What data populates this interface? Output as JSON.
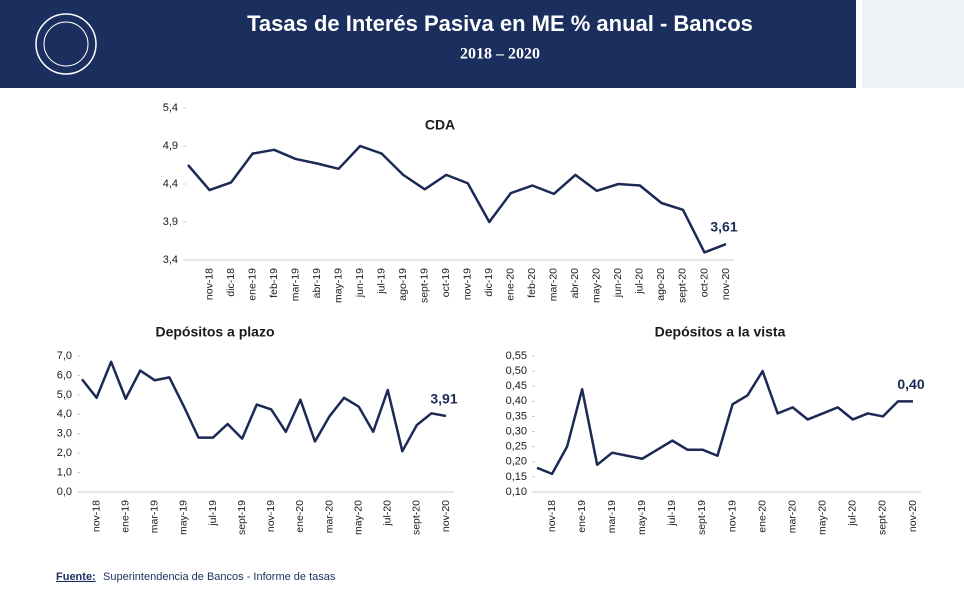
{
  "header": {
    "title": "Tasas de Interés Pasiva en ME % anual - Bancos",
    "subtitle": "2018 – 2020"
  },
  "source": {
    "label": "Fuente:",
    "text": "Superintendencia de Bancos - Informe de tasas"
  },
  "chart_data": [
    {
      "type": "line",
      "title": "CDA",
      "color": "#1b2a55",
      "categories": [
        null,
        "nov-18",
        "dic-18",
        "ene-19",
        "feb-19",
        "mar-19",
        "abr-19",
        "may-19",
        "jun-19",
        "jul-19",
        "ago-19",
        "sept-19",
        "oct-19",
        "nov-19",
        "dic-19",
        "ene-20",
        "feb-20",
        "mar-20",
        "abr-20",
        "may-20",
        "jun-20",
        "jul-20",
        "ago-20",
        "sept-20",
        "oct-20",
        "nov-20"
      ],
      "values": [
        4.65,
        4.32,
        4.42,
        4.8,
        4.85,
        4.73,
        4.67,
        4.6,
        4.9,
        4.8,
        4.52,
        4.33,
        4.52,
        4.41,
        3.9,
        4.28,
        4.38,
        4.27,
        4.52,
        4.31,
        4.4,
        4.38,
        4.15,
        4.06,
        3.5,
        3.61
      ],
      "value_labels": [
        null,
        null,
        null,
        null,
        null,
        null,
        null,
        null,
        null,
        null,
        null,
        null,
        null,
        null,
        null,
        null,
        null,
        null,
        null,
        null,
        null,
        null,
        null,
        null,
        null,
        "3,61"
      ],
      "ylim": [
        3.4,
        5.4
      ],
      "yticks": [
        {
          "value": 3.4,
          "label": "3,4"
        },
        {
          "value": 3.9,
          "label": "3,9"
        },
        {
          "value": 4.4,
          "label": "4,4"
        },
        {
          "value": 4.9,
          "label": "4,9"
        },
        {
          "value": 5.4,
          "label": "5,4"
        }
      ]
    },
    {
      "type": "line",
      "title": "Depósitos a plazo",
      "color": "#1b2a55",
      "categories": [
        null,
        "nov-18",
        null,
        "ene-19",
        null,
        "mar-19",
        null,
        "may-19",
        null,
        "jul-19",
        null,
        "sept-19",
        null,
        "nov-19",
        null,
        "ene-20",
        null,
        "mar-20",
        null,
        "may-20",
        null,
        "jul-20",
        null,
        "sept-20",
        null,
        "nov-20"
      ],
      "values": [
        5.8,
        4.85,
        6.7,
        4.8,
        6.25,
        5.75,
        5.9,
        4.4,
        2.8,
        2.8,
        3.5,
        2.75,
        4.5,
        4.25,
        3.1,
        4.75,
        2.6,
        3.9,
        4.85,
        4.4,
        3.1,
        5.25,
        2.1,
        3.45,
        4.05,
        3.91
      ],
      "value_labels": [
        null,
        null,
        null,
        null,
        null,
        null,
        null,
        null,
        null,
        null,
        null,
        null,
        null,
        null,
        null,
        null,
        null,
        null,
        null,
        null,
        null,
        null,
        null,
        null,
        null,
        "3,91"
      ],
      "ylim": [
        0,
        7
      ],
      "yticks": [
        {
          "value": 0,
          "label": "0,0"
        },
        {
          "value": 1,
          "label": "1,0"
        },
        {
          "value": 2,
          "label": "2,0"
        },
        {
          "value": 3,
          "label": "3,0"
        },
        {
          "value": 4,
          "label": "4,0"
        },
        {
          "value": 5,
          "label": "5,0"
        },
        {
          "value": 6,
          "label": "6,0"
        },
        {
          "value": 7,
          "label": "7,0"
        }
      ]
    },
    {
      "type": "line",
      "title": "Depósitos a la vista",
      "color": "#1b2a55",
      "categories": [
        null,
        "nov-18",
        null,
        "ene-19",
        null,
        "mar-19",
        null,
        "may-19",
        null,
        "jul-19",
        null,
        "sept-19",
        null,
        "nov-19",
        null,
        "ene-20",
        null,
        "mar-20",
        null,
        "may-20",
        null,
        "jul-20",
        null,
        "sept-20",
        null,
        "nov-20"
      ],
      "values": [
        0.18,
        0.16,
        0.25,
        0.44,
        0.19,
        0.23,
        0.22,
        0.21,
        0.24,
        0.27,
        0.24,
        0.24,
        0.22,
        0.39,
        0.42,
        0.5,
        0.36,
        0.38,
        0.34,
        0.36,
        0.38,
        0.34,
        0.36,
        0.35,
        0.4,
        0.4
      ],
      "value_labels": [
        null,
        null,
        null,
        null,
        null,
        null,
        null,
        null,
        null,
        null,
        null,
        null,
        null,
        null,
        null,
        null,
        null,
        null,
        null,
        null,
        null,
        null,
        null,
        null,
        null,
        "0,40"
      ],
      "ylim": [
        0.1,
        0.55
      ],
      "yticks": [
        {
          "value": 0.1,
          "label": "0,10"
        },
        {
          "value": 0.15,
          "label": "0,15"
        },
        {
          "value": 0.2,
          "label": "0,20"
        },
        {
          "value": 0.25,
          "label": "0,25"
        },
        {
          "value": 0.3,
          "label": "0,30"
        },
        {
          "value": 0.35,
          "label": "0,35"
        },
        {
          "value": 0.4,
          "label": "0,40"
        },
        {
          "value": 0.45,
          "label": "0,45"
        },
        {
          "value": 0.5,
          "label": "0,50"
        },
        {
          "value": 0.55,
          "label": "0,55"
        }
      ]
    }
  ]
}
